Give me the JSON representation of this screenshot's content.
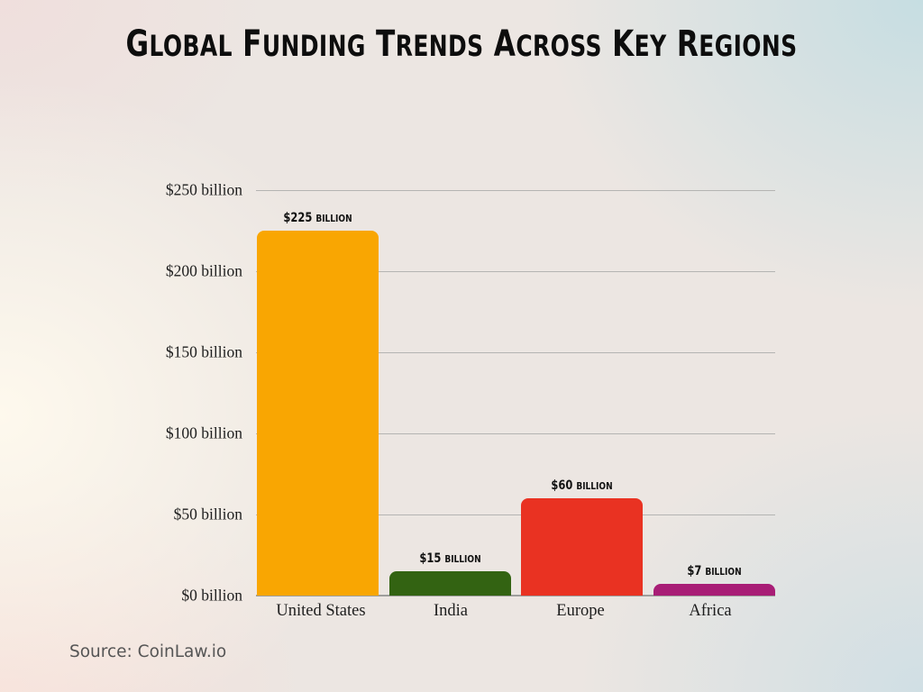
{
  "title": {
    "first_letters": [
      "G",
      "F",
      "T",
      "A",
      "K",
      "R"
    ],
    "text": "Global Funding Trends Across Key Regions"
  },
  "source": "Source: CoinLaw.io",
  "chart_data": {
    "type": "bar",
    "title": "Global Funding Trends Across Key Regions",
    "xlabel": "",
    "ylabel": "",
    "categories": [
      "United States",
      "India",
      "Europe",
      "Africa"
    ],
    "values": [
      225,
      15,
      60,
      7
    ],
    "unit": "billion USD",
    "data_labels": [
      "$225 billion",
      "$15 billion",
      "$60 billion",
      "$7 billion"
    ],
    "colors": [
      "#F9A602",
      "#336312",
      "#E93222",
      "#A81D76"
    ],
    "ylim": [
      0,
      250
    ],
    "yticks": [
      0,
      50,
      100,
      150,
      200,
      250
    ],
    "ytick_labels": [
      "$0 billion",
      "$50 billion",
      "$100 billion",
      "$150 billion",
      "$200 billion",
      "$250 billion"
    ],
    "grid": true,
    "legend": "none"
  }
}
